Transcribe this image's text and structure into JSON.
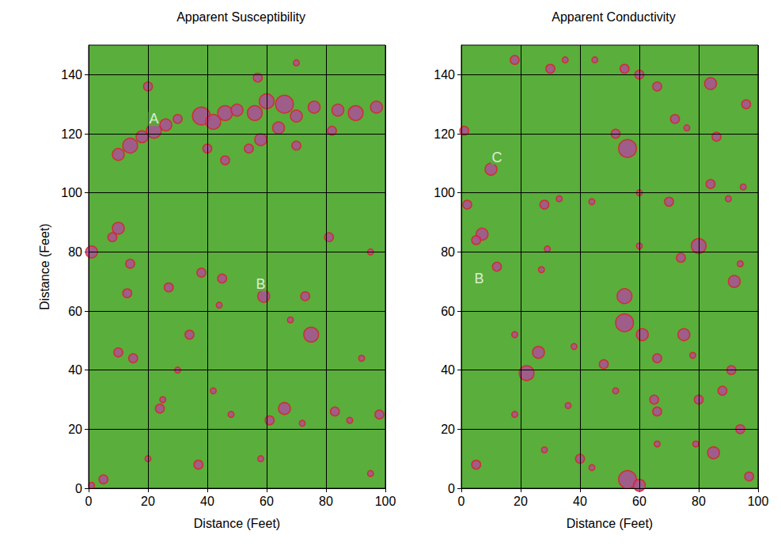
{
  "chart_data": [
    {
      "type": "scatter",
      "title": "Apparent Susceptibility",
      "xlabel": "Distance (Feet)",
      "ylabel": "Distance (Feet)",
      "xlim": [
        0,
        100
      ],
      "ylim": [
        0,
        150
      ],
      "xticks": [
        0,
        20,
        40,
        60,
        80,
        100
      ],
      "yticks": [
        0,
        20,
        40,
        60,
        80,
        100,
        120,
        140
      ],
      "grid": true,
      "color": "#b0489c",
      "x": [
        10,
        14,
        18,
        22,
        26,
        30,
        38,
        42,
        46,
        50,
        56,
        60,
        66,
        70,
        64,
        58,
        54,
        46,
        76,
        84,
        90,
        97,
        82,
        70,
        40,
        20,
        57,
        70,
        10,
        8,
        1,
        14,
        13,
        27,
        38,
        45,
        59,
        73,
        75,
        81,
        95,
        34,
        10,
        15,
        30,
        25,
        24,
        42,
        48,
        61,
        66,
        72,
        83,
        88,
        98,
        58,
        37,
        20,
        5,
        95,
        1,
        68,
        92,
        44
      ],
      "y": [
        113,
        116,
        119,
        121,
        123,
        125,
        126,
        124,
        127,
        128,
        127,
        131,
        130,
        126,
        122,
        118,
        115,
        111,
        129,
        128,
        127,
        129,
        121,
        116,
        115,
        136,
        139,
        144,
        88,
        85,
        80,
        76,
        66,
        68,
        73,
        71,
        65,
        65,
        52,
        85,
        80,
        52,
        46,
        44,
        40,
        30,
        27,
        33,
        25,
        23,
        27,
        22,
        26,
        23,
        25,
        10,
        8,
        10,
        3,
        5,
        1,
        57,
        44,
        62
      ],
      "sizes": [
        4,
        5,
        4,
        5,
        4,
        3,
        6,
        5,
        5,
        4,
        5,
        5,
        6,
        4,
        4,
        4,
        3,
        3,
        4,
        4,
        5,
        4,
        3,
        3,
        3,
        3,
        3,
        2,
        4,
        3,
        4,
        3,
        3,
        3,
        3,
        3,
        4,
        3,
        5,
        3,
        2,
        3,
        3,
        3,
        2,
        2,
        3,
        2,
        2,
        3,
        4,
        2,
        3,
        2,
        3,
        2,
        3,
        2,
        3,
        2,
        2,
        2,
        2,
        2
      ],
      "annotations": [
        {
          "text": "A",
          "x": 22,
          "y": 125
        },
        {
          "text": "B",
          "x": 58,
          "y": 69
        }
      ]
    },
    {
      "type": "scatter",
      "title": "Apparent Conductivity",
      "xlabel": "Distance (Feet)",
      "xlim": [
        0,
        100
      ],
      "ylim": [
        0,
        150
      ],
      "xticks": [
        0,
        20,
        40,
        60,
        80,
        100
      ],
      "yticks": [
        0,
        20,
        40,
        60,
        80,
        100,
        120,
        140
      ],
      "grid": true,
      "color": "#b0489c",
      "x": [
        10,
        18,
        30,
        35,
        45,
        55,
        60,
        66,
        84,
        96,
        56,
        52,
        72,
        76,
        86,
        1,
        2,
        7,
        5,
        28,
        33,
        44,
        60,
        70,
        84,
        90,
        95,
        80,
        74,
        60,
        94,
        12,
        29,
        27,
        55,
        55,
        61,
        75,
        66,
        26,
        22,
        18,
        92,
        91,
        94,
        48,
        52,
        65,
        66,
        80,
        88,
        85,
        79,
        40,
        44,
        56,
        60,
        5,
        28,
        18,
        36,
        97,
        66,
        38,
        78
      ],
      "y": [
        108,
        145,
        142,
        145,
        145,
        142,
        140,
        136,
        137,
        130,
        115,
        120,
        125,
        122,
        119,
        121,
        96,
        86,
        84,
        96,
        98,
        97,
        100,
        97,
        103,
        98,
        102,
        82,
        78,
        82,
        76,
        75,
        81,
        74,
        65,
        56,
        52,
        52,
        44,
        46,
        39,
        52,
        70,
        40,
        20,
        42,
        33,
        30,
        26,
        30,
        33,
        12,
        15,
        10,
        7,
        3,
        1,
        8,
        13,
        25,
        28,
        4,
        15,
        48,
        45
      ],
      "sizes": [
        4,
        3,
        3,
        2,
        2,
        3,
        3,
        3,
        4,
        3,
        6,
        3,
        3,
        2,
        3,
        3,
        3,
        4,
        3,
        3,
        2,
        2,
        2,
        3,
        3,
        2,
        2,
        5,
        3,
        2,
        2,
        3,
        2,
        2,
        5,
        6,
        4,
        4,
        3,
        4,
        5,
        2,
        4,
        3,
        3,
        3,
        2,
        3,
        3,
        3,
        3,
        4,
        2,
        3,
        2,
        6,
        4,
        3,
        2,
        2,
        2,
        3,
        2,
        2,
        2
      ],
      "annotations": [
        {
          "text": "C",
          "x": 12,
          "y": 112
        },
        {
          "text": "B",
          "x": 6,
          "y": 71
        }
      ]
    }
  ]
}
